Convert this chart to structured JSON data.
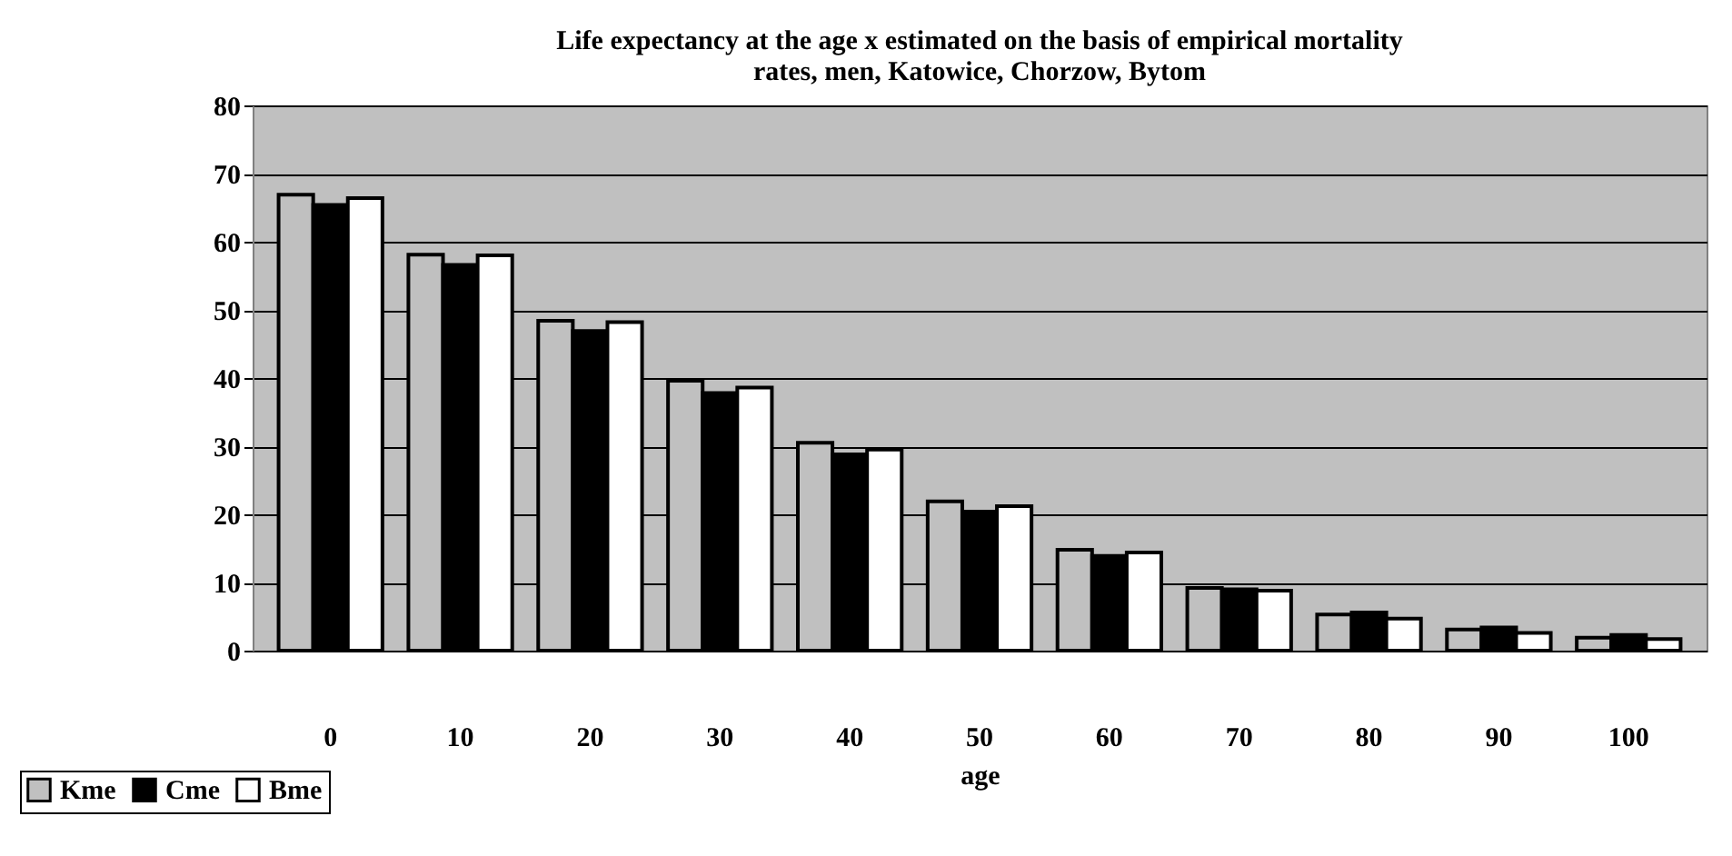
{
  "chart_data": {
    "type": "bar",
    "title": [
      "Life expectancy at the age x  estimated on the basis of empirical  mortality",
      "rates, men, Katowice, Chorzow, Bytom"
    ],
    "xlabel": "age",
    "categories": [
      "0",
      "10",
      "20",
      "30",
      "40",
      "50",
      "60",
      "70",
      "80",
      "90",
      "100"
    ],
    "series": [
      {
        "name": "Kme",
        "color": "#c0c0c0",
        "values": [
          66.9,
          58.1,
          48.4,
          39.6,
          30.5,
          21.9,
          14.8,
          9.2,
          5.3,
          3.1,
          1.9
        ]
      },
      {
        "name": "Cme",
        "color": "#000000",
        "values": [
          65.4,
          56.6,
          46.9,
          37.8,
          28.8,
          20.4,
          13.9,
          9.0,
          5.6,
          3.4,
          2.3
        ]
      },
      {
        "name": "Bme",
        "color": "#ffffff",
        "values": [
          66.4,
          58.0,
          48.2,
          38.6,
          29.5,
          21.2,
          14.4,
          8.8,
          4.7,
          2.6,
          1.7
        ]
      }
    ],
    "ylim": [
      0,
      80
    ],
    "yticks": [
      0,
      10,
      20,
      30,
      40,
      50,
      60,
      70,
      80
    ],
    "grid": "y",
    "legend": "bottom left"
  }
}
